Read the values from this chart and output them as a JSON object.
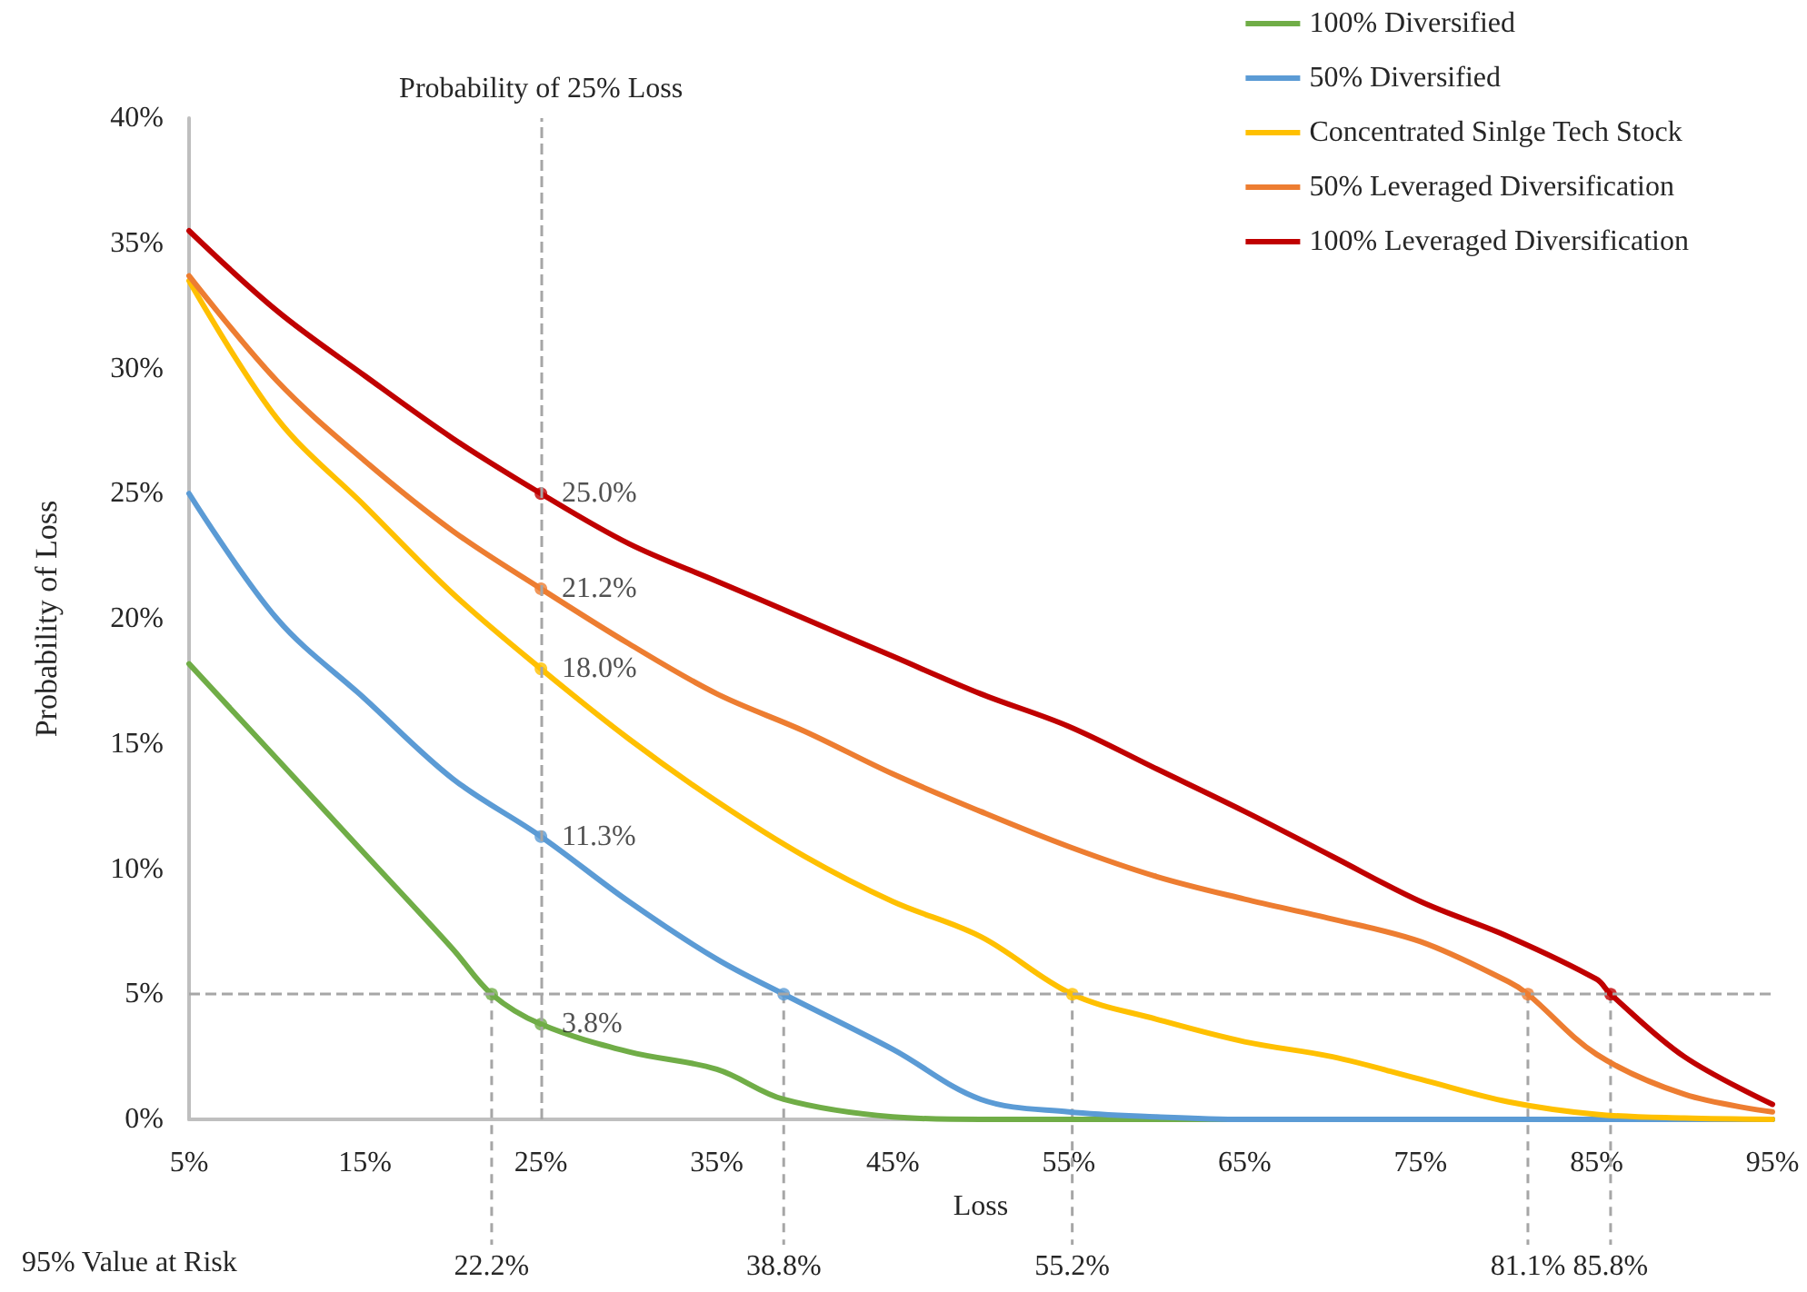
{
  "chart_data": {
    "type": "line",
    "xlabel": "Loss",
    "ylabel": "Probability of Loss",
    "xlim": [
      5,
      95
    ],
    "xticks": [
      {
        "value": 5,
        "label": "5%"
      },
      {
        "value": 15,
        "label": "15%"
      },
      {
        "value": 25,
        "label": "25%"
      },
      {
        "value": 35,
        "label": "35%"
      },
      {
        "value": 45,
        "label": "45%"
      },
      {
        "value": 55,
        "label": "55%"
      },
      {
        "value": 65,
        "label": "65%"
      },
      {
        "value": 75,
        "label": "75%"
      },
      {
        "value": 85,
        "label": "85%"
      },
      {
        "value": 95,
        "label": "95%"
      }
    ],
    "ylim": [
      0,
      40
    ],
    "yticks": [
      {
        "value": 0,
        "label": "0%"
      },
      {
        "value": 5,
        "label": "5%"
      },
      {
        "value": 10,
        "label": "10%"
      },
      {
        "value": 15,
        "label": "15%"
      },
      {
        "value": 20,
        "label": "20%"
      },
      {
        "value": 25,
        "label": "25%"
      },
      {
        "value": 30,
        "label": "30%"
      },
      {
        "value": 35,
        "label": "35%"
      },
      {
        "value": 40,
        "label": "40%"
      }
    ],
    "grid": false,
    "legend": "top right",
    "marker": "none",
    "line_style": "solid",
    "series": [
      {
        "name": "100% Diversified",
        "color": "#70ad47",
        "x": [
          5,
          10,
          15,
          20,
          22.2,
          25,
          30,
          35,
          38.8,
          45,
          50,
          55,
          60,
          65,
          70,
          75,
          80,
          85,
          90,
          95
        ],
        "values": [
          18.2,
          14.4,
          10.6,
          6.8,
          5.0,
          3.8,
          2.7,
          2.0,
          0.8,
          0.1,
          0,
          0,
          0,
          0,
          0,
          0,
          0,
          0,
          0,
          0
        ]
      },
      {
        "name": "50% Diversified",
        "color": "#5b9bd5",
        "x": [
          5,
          10,
          15,
          20,
          25,
          30,
          35,
          38.8,
          45,
          50,
          55,
          60,
          65,
          70,
          75,
          80,
          85,
          90,
          95
        ],
        "values": [
          25.0,
          20.0,
          16.8,
          13.6,
          11.3,
          8.7,
          6.4,
          5.0,
          2.8,
          0.8,
          0.3,
          0.1,
          0,
          0,
          0,
          0,
          0,
          0,
          0
        ]
      },
      {
        "name": "Concentrated Sinlge Tech Stock",
        "color": "#ffc000",
        "x": [
          5,
          10,
          15,
          20,
          25,
          30,
          35,
          40,
          45,
          50,
          55.2,
          60,
          65,
          70,
          75,
          80,
          85,
          90,
          95
        ],
        "values": [
          33.5,
          28.0,
          24.5,
          21.0,
          18.0,
          15.2,
          12.7,
          10.5,
          8.7,
          7.3,
          5.0,
          4.0,
          3.1,
          2.5,
          1.6,
          0.7,
          0.2,
          0.05,
          0
        ]
      },
      {
        "name": "50% Leveraged Diversification",
        "color": "#ed7d31",
        "x": [
          5,
          10,
          15,
          20,
          25,
          30,
          35,
          40,
          45,
          50,
          55,
          60,
          65,
          70,
          75,
          80,
          81.1,
          85,
          90,
          95
        ],
        "values": [
          33.7,
          29.5,
          26.3,
          23.5,
          21.2,
          19.0,
          17.0,
          15.5,
          13.8,
          12.3,
          10.9,
          9.7,
          8.8,
          8.0,
          7.1,
          5.5,
          5.0,
          2.6,
          1.0,
          0.3
        ]
      },
      {
        "name": "100% Leveraged Diversification",
        "color": "#c00000",
        "x": [
          5,
          10,
          15,
          20,
          25,
          30,
          35,
          40,
          45,
          50,
          55,
          60,
          65,
          70,
          75,
          80,
          85,
          85.8,
          90,
          95
        ],
        "values": [
          35.5,
          32.3,
          29.7,
          27.2,
          25.0,
          23.0,
          21.5,
          20.0,
          18.5,
          17.0,
          15.7,
          14.0,
          12.3,
          10.5,
          8.7,
          7.3,
          5.6,
          5.0,
          2.5,
          0.6
        ]
      },
      {
        "type": "scatter",
        "marker": "circle",
        "x": [
          25,
          25,
          25,
          25,
          25,
          22.2,
          38.8,
          55.2,
          81.1,
          85.8
        ],
        "values": [
          25.0,
          21.2,
          18.0,
          11.3,
          3.8,
          5,
          5,
          5,
          5,
          5
        ],
        "colors": [
          "#c00000",
          "#ed7d31",
          "#ffc000",
          "#5b9bd5",
          "#70ad47",
          "#70ad47",
          "#5b9bd5",
          "#ffc000",
          "#ed7d31",
          "#c00000"
        ],
        "value_labels": [
          "25.0%",
          "21.2%",
          "18.0%",
          "11.3%",
          "3.8%",
          null,
          null,
          null,
          null,
          null
        ]
      }
    ],
    "ref_lines": [
      {
        "axis": "x",
        "value": 25,
        "label": "Probability of 25% Loss",
        "color": "#a6a6a6",
        "line_style": "dashed"
      },
      {
        "axis": "y",
        "value": 5,
        "label": null,
        "color": "#a6a6a6",
        "line_style": "dashed"
      }
    ],
    "annotations": [
      "95% Value at Risk",
      {
        "text": "22.2%",
        "x": 22.2,
        "y": 5
      },
      {
        "text": "38.8%",
        "x": 38.8,
        "y": 5
      },
      {
        "text": "55.2%",
        "x": 55.2,
        "y": 5
      },
      {
        "text": "81.1%",
        "x": 81.1,
        "y": 5
      },
      {
        "text": "85.8%",
        "x": 85.8,
        "y": 5
      }
    ]
  }
}
